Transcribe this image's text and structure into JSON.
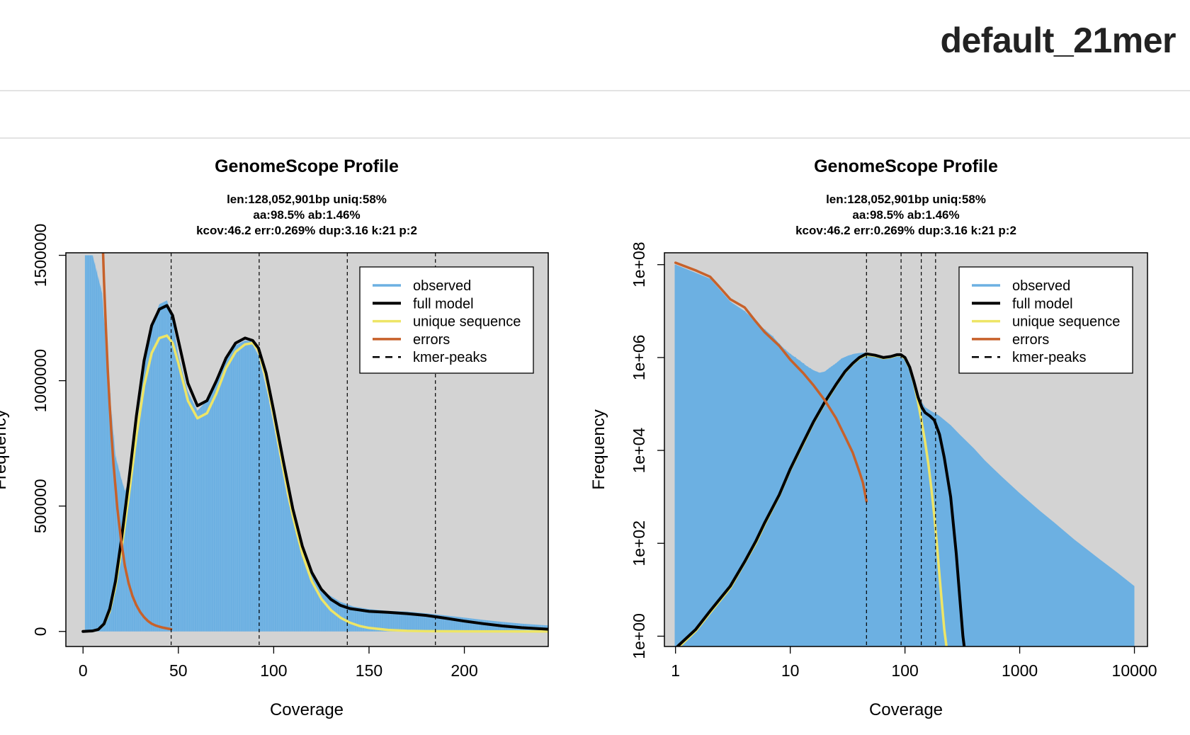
{
  "page": {
    "title": "default_21mer"
  },
  "colors": {
    "observed": "#6cb0e2",
    "full_model": "#000000",
    "unique_sequence": "#eee566",
    "errors": "#c7612a",
    "kmer_peaks": "#000000",
    "panel_bg": "#d3d3d3"
  },
  "chart_data": [
    {
      "type": "line",
      "title": "GenomeScope Profile",
      "subtitle": [
        "len:128,052,901bp uniq:58%",
        "aa:98.5% ab:1.46%",
        "kcov:46.2 err:0.269%  dup:3.16  k:21 p:2"
      ],
      "xlabel": "Coverage",
      "ylabel": "Frequency",
      "xscale": "linear",
      "yscale": "linear",
      "xlim": [
        -9,
        244
      ],
      "ylim": [
        -60000,
        1510000
      ],
      "xticks": [
        0,
        50,
        100,
        150,
        200
      ],
      "xtick_labels": [
        "0",
        "50",
        "100",
        "150",
        "200"
      ],
      "yticks": [
        0,
        500000,
        1000000,
        1500000
      ],
      "ytick_labels": [
        "0",
        "500000",
        "1000000",
        "1500000"
      ],
      "kmer_peaks": [
        46.2,
        92.4,
        138.6,
        184.8
      ],
      "legend": {
        "placement": "top-right",
        "entries": [
          "observed",
          "full model",
          "unique sequence",
          "errors",
          "kmer-peaks"
        ]
      },
      "series": [
        {
          "name": "observed",
          "kind": "histogram",
          "x": [
            1,
            5,
            10,
            14,
            17,
            20,
            22,
            25,
            28,
            32,
            36,
            40,
            44,
            47,
            50,
            55,
            60,
            65,
            70,
            75,
            80,
            85,
            88,
            92,
            97,
            102,
            107,
            112,
            117,
            122,
            128,
            135,
            142,
            150,
            160,
            170,
            180,
            190,
            200,
            210,
            220,
            230,
            244
          ],
          "y": [
            1500000,
            1500000,
            1350000,
            950000,
            700000,
            610000,
            560000,
            620000,
            800000,
            1050000,
            1220000,
            1305000,
            1320000,
            1240000,
            1100000,
            955000,
            880000,
            920000,
            1010000,
            1090000,
            1140000,
            1160000,
            1158000,
            1100000,
            940000,
            740000,
            540000,
            380000,
            268000,
            196000,
            150000,
            118000,
            99000,
            89000,
            82000,
            79000,
            72000,
            64000,
            55000,
            46000,
            38000,
            31000,
            24000
          ]
        },
        {
          "name": "full model",
          "kind": "line",
          "x": [
            0,
            5,
            8,
            11,
            14,
            17,
            20,
            24,
            28,
            32,
            36,
            40,
            44,
            47,
            50,
            55,
            60,
            65,
            70,
            75,
            80,
            85,
            89,
            92,
            96,
            100,
            105,
            110,
            115,
            120,
            125,
            130,
            135,
            140,
            150,
            160,
            170,
            180,
            190,
            200,
            210,
            220,
            230,
            244
          ],
          "y": [
            0,
            2000,
            8000,
            30000,
            90000,
            200000,
            360000,
            600000,
            860000,
            1080000,
            1220000,
            1285000,
            1300000,
            1260000,
            1160000,
            990000,
            900000,
            920000,
            1000000,
            1090000,
            1150000,
            1170000,
            1160000,
            1130000,
            1030000,
            880000,
            680000,
            490000,
            340000,
            235000,
            168000,
            128000,
            104000,
            91000,
            80000,
            76000,
            71000,
            64000,
            53000,
            41000,
            31000,
            22000,
            15000,
            9000
          ]
        },
        {
          "name": "unique sequence",
          "kind": "line",
          "x": [
            0,
            5,
            8,
            11,
            14,
            17,
            20,
            24,
            28,
            32,
            36,
            40,
            44,
            47,
            50,
            55,
            60,
            65,
            70,
            75,
            80,
            85,
            89,
            92,
            96,
            100,
            105,
            110,
            115,
            120,
            125,
            130,
            135,
            140,
            145,
            150,
            160,
            170,
            180,
            200,
            244
          ],
          "y": [
            0,
            2000,
            8000,
            28000,
            80000,
            180000,
            320000,
            540000,
            780000,
            980000,
            1110000,
            1170000,
            1180000,
            1150000,
            1070000,
            920000,
            850000,
            870000,
            950000,
            1050000,
            1115000,
            1145000,
            1150000,
            1120000,
            1010000,
            860000,
            650000,
            460000,
            310000,
            200000,
            130000,
            85000,
            55000,
            35000,
            22000,
            14000,
            6000,
            2500,
            1000,
            300,
            0
          ]
        },
        {
          "name": "errors",
          "kind": "line",
          "x": [
            10.5,
            11,
            12,
            13,
            14,
            15,
            16,
            18,
            20,
            22,
            24,
            26,
            28,
            30,
            32,
            34,
            36,
            38,
            40,
            42,
            44,
            46.2
          ],
          "y": [
            1510000,
            1400000,
            1210000,
            1040000,
            900000,
            775000,
            665000,
            490000,
            360000,
            260000,
            190000,
            140000,
            104000,
            77000,
            57000,
            42000,
            31000,
            24000,
            19000,
            15000,
            12000,
            9000
          ]
        }
      ]
    },
    {
      "type": "line",
      "title": "GenomeScope Profile",
      "subtitle": [
        "len:128,052,901bp uniq:58%",
        "aa:98.5% ab:1.46%",
        "kcov:46.2 err:0.269%  dup:3.16  k:21 p:2"
      ],
      "xlabel": "Coverage",
      "ylabel": "Frequency",
      "xscale": "log",
      "yscale": "log",
      "xlim": [
        0.8,
        13000
      ],
      "ylim": [
        0.6,
        180000000
      ],
      "xticks": [
        1,
        10,
        100,
        1000,
        10000
      ],
      "xtick_labels": [
        "1",
        "10",
        "100",
        "1000",
        "10000"
      ],
      "yticks": [
        1,
        100,
        10000,
        1000000,
        100000000
      ],
      "ytick_labels": [
        "1e+00",
        "1e+02",
        "1e+04",
        "1e+06",
        "1e+08"
      ],
      "kmer_peaks": [
        46.2,
        92.4,
        138.6,
        184.8
      ],
      "legend": {
        "placement": "top-right",
        "entries": [
          "observed",
          "full model",
          "unique sequence",
          "errors",
          "kmer-peaks"
        ]
      },
      "series": [
        {
          "name": "observed",
          "kind": "histogram",
          "x": [
            1,
            2,
            3,
            4,
            5,
            6,
            7,
            8,
            9,
            10,
            12,
            14,
            16,
            18,
            20,
            22,
            25,
            28,
            32,
            36,
            40,
            46,
            55,
            65,
            75,
            85,
            92,
            100,
            110,
            120,
            130,
            140,
            150,
            170,
            190,
            200,
            250,
            300,
            400,
            500,
            700,
            1000,
            1500,
            2000,
            3000,
            5000,
            7000,
            10000
          ],
          "y": [
            100000000,
            50000000,
            16000000,
            10000000,
            6000000,
            4000000,
            2900000,
            2000000,
            1500000,
            1200000,
            870000,
            650000,
            530000,
            470000,
            500000,
            600000,
            750000,
            950000,
            1100000,
            1200000,
            1250000,
            1280000,
            1120000,
            1000000,
            1050000,
            1150000,
            1150000,
            1000000,
            620000,
            320000,
            170000,
            110000,
            85000,
            70000,
            60000,
            55000,
            35000,
            22000,
            11000,
            6000,
            2700,
            1200,
            500,
            280,
            120,
            45,
            24,
            12
          ]
        },
        {
          "name": "full model",
          "kind": "line",
          "x": [
            1,
            1.5,
            2,
            3,
            4,
            5,
            6,
            8,
            10,
            13,
            16,
            20,
            25,
            30,
            35,
            40,
            46,
            55,
            65,
            75,
            85,
            92,
            100,
            110,
            120,
            130,
            140,
            150,
            165,
            180,
            200,
            220,
            250,
            280,
            300,
            320,
            340
          ],
          "y": [
            0.55,
            1.4,
            3.5,
            12,
            40,
            110,
            280,
            1100,
            4000,
            15000,
            42000,
            110000,
            260000,
            500000,
            750000,
            1000000,
            1200000,
            1120000,
            1000000,
            1050000,
            1150000,
            1150000,
            1000000,
            620000,
            300000,
            140000,
            85000,
            65000,
            55000,
            45000,
            22000,
            7000,
            1000,
            60,
            7,
            1,
            0.3
          ]
        },
        {
          "name": "unique sequence",
          "kind": "line",
          "x": [
            1,
            1.5,
            2,
            3,
            4,
            5,
            6,
            8,
            10,
            13,
            16,
            20,
            25,
            30,
            35,
            40,
            46,
            55,
            65,
            75,
            85,
            92,
            100,
            110,
            120,
            130,
            140,
            150,
            160,
            170,
            180,
            190,
            200,
            210,
            220,
            230,
            240
          ],
          "y": [
            0.5,
            1.3,
            3.2,
            11,
            38,
            100,
            260,
            1050,
            3800,
            14000,
            40000,
            105000,
            250000,
            480000,
            730000,
            960000,
            1150000,
            1080000,
            970000,
            1020000,
            1120000,
            1120000,
            960000,
            590000,
            280000,
            110000,
            40000,
            15000,
            5000,
            1500,
            400,
            90,
            20,
            5,
            1.4,
            0.6,
            0.3
          ]
        },
        {
          "name": "errors",
          "kind": "line",
          "x": [
            1,
            1.5,
            2,
            2.5,
            3,
            4,
            5,
            6,
            8,
            10,
            13,
            16,
            20,
            25,
            30,
            35,
            40,
            43,
            46.2
          ],
          "y": [
            110000000,
            75000000,
            55000000,
            30000000,
            18000000,
            12000000,
            6000000,
            3500000,
            1800000,
            900000,
            460000,
            250000,
            120000,
            50000,
            20000,
            9000,
            3500,
            2000,
            800
          ]
        }
      ]
    }
  ]
}
